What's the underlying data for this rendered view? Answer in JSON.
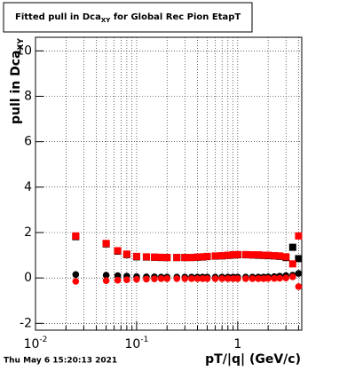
{
  "chart_data": {
    "type": "scatter",
    "title": "Fitted pull in Dca",
    "title_subscript": "XY",
    "title_tail": " for Global Rec Pion EtapT",
    "y_label": "pull in Dca",
    "y_label_subscript": "XY",
    "x_label": "pT/|q| (GeV/c)",
    "timestamp": "Thu May  6 15:20:13 2021",
    "log_x": true,
    "grid": true,
    "xlim": [
      0.01,
      4.3
    ],
    "ylim": [
      -2.3,
      10.6
    ],
    "xticks": [
      {
        "value": 0.01,
        "label": "10",
        "exponent": "-2"
      },
      {
        "value": 0.1,
        "label": "10",
        "exponent": "-1"
      },
      1
    ],
    "xminor": [
      0.02,
      0.03,
      0.04,
      0.05,
      0.06,
      0.07,
      0.08,
      0.09,
      0.2,
      0.3,
      0.4,
      0.5,
      0.6,
      0.7,
      0.8,
      0.9,
      2,
      3,
      4
    ],
    "yticks": [
      -2,
      0,
      2,
      4,
      6,
      8,
      10
    ],
    "x": [
      0.025,
      0.05,
      0.065,
      0.08,
      0.1,
      0.125,
      0.15,
      0.175,
      0.2,
      0.25,
      0.3,
      0.35,
      0.4,
      0.45,
      0.5,
      0.6,
      0.7,
      0.8,
      0.9,
      1.0,
      1.2,
      1.4,
      1.6,
      1.8,
      2.0,
      2.3,
      2.6,
      3.0,
      3.5,
      4.0
    ],
    "series": [
      {
        "color": "#000000",
        "marker": "square",
        "values": [
          1.82,
          1.5,
          1.18,
          1.03,
          0.93,
          0.92,
          0.91,
          0.9,
          0.9,
          0.9,
          0.9,
          0.9,
          0.91,
          0.92,
          0.94,
          0.96,
          0.97,
          0.99,
          1.01,
          1.02,
          1.02,
          1.01,
          1.0,
          0.99,
          0.98,
          0.97,
          0.95,
          0.9,
          1.35,
          0.85
        ]
      },
      {
        "color": "#ff0000",
        "marker": "square",
        "values": [
          1.85,
          1.52,
          1.2,
          1.05,
          0.95,
          0.93,
          0.92,
          0.91,
          0.9,
          0.9,
          0.9,
          0.9,
          0.92,
          0.93,
          0.95,
          0.97,
          0.98,
          1.0,
          1.02,
          1.03,
          1.03,
          1.02,
          1.02,
          1.0,
          1.0,
          0.98,
          0.97,
          0.93,
          0.62,
          1.85
        ]
      },
      {
        "color": "#000000",
        "marker": "circle",
        "values": [
          0.15,
          0.12,
          0.1,
          0.08,
          0.06,
          0.05,
          0.05,
          0.04,
          0.04,
          0.04,
          0.04,
          0.04,
          0.04,
          0.04,
          0.04,
          0.04,
          0.04,
          0.04,
          0.04,
          0.04,
          0.04,
          0.04,
          0.04,
          0.04,
          0.05,
          0.06,
          0.08,
          0.1,
          0.12,
          0.2
        ]
      },
      {
        "color": "#ff0000",
        "marker": "circle",
        "values": [
          -0.15,
          -0.12,
          -0.1,
          -0.08,
          -0.06,
          -0.05,
          -0.04,
          -0.03,
          -0.03,
          -0.03,
          -0.03,
          -0.03,
          -0.03,
          -0.03,
          -0.03,
          -0.03,
          -0.03,
          -0.03,
          -0.03,
          -0.03,
          -0.03,
          -0.03,
          -0.03,
          -0.03,
          -0.02,
          -0.02,
          -0.01,
          0.0,
          0.05,
          -0.38
        ]
      }
    ]
  }
}
